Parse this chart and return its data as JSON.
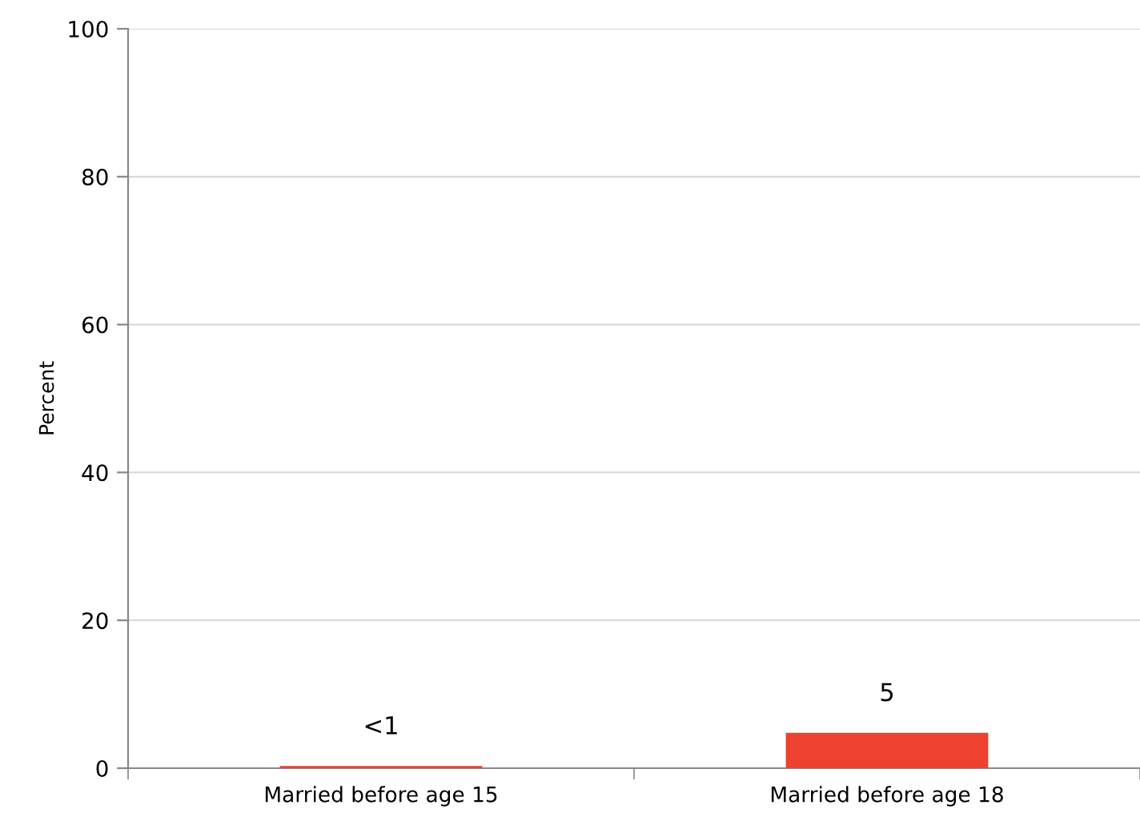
{
  "chart_data": {
    "type": "bar",
    "ylabel": "Percent",
    "categories": [
      "Married before age 15",
      "Married before age 18"
    ],
    "values": [
      0.3,
      4.8
    ],
    "value_labels": [
      "<1",
      "5"
    ],
    "colors": [
      "#ee4130",
      "#ee4130"
    ],
    "ylim": [
      0,
      100
    ],
    "yticks": [
      0,
      20,
      40,
      60,
      80,
      100
    ],
    "grid": "y",
    "legend": false
  }
}
